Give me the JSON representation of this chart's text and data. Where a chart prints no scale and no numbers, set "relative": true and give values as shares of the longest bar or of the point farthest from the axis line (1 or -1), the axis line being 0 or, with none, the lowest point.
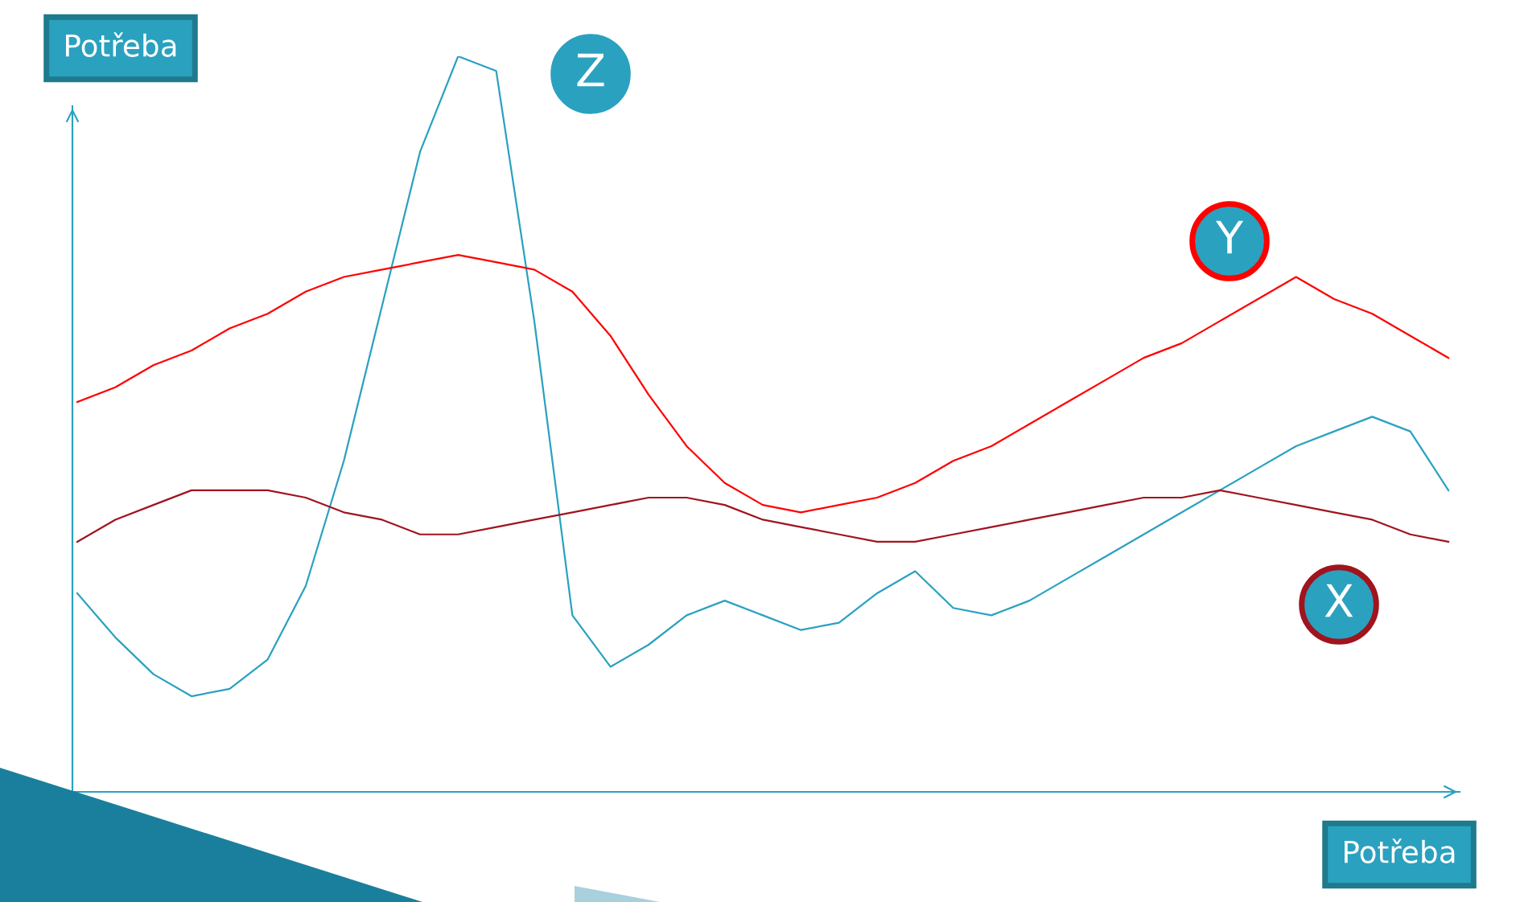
{
  "chart_data": {
    "type": "line",
    "relative": true,
    "xlabel": "Potřeba",
    "ylabel": "Potřeba",
    "grid": false,
    "legend": false,
    "categories": [
      null,
      null,
      null,
      null,
      null,
      null,
      null,
      null,
      null,
      null,
      null,
      null,
      null,
      null,
      null,
      null,
      null,
      null,
      null,
      null,
      null,
      null,
      null,
      null,
      null,
      null,
      null,
      null,
      null,
      null,
      null,
      null,
      null,
      null,
      null,
      null,
      null
    ],
    "series": [
      {
        "name": "Z",
        "color": "#2aa1c0",
        "values": [
          0.27,
          0.21,
          0.16,
          0.13,
          0.14,
          0.18,
          0.28,
          0.45,
          0.66,
          0.87,
          1.0,
          0.98,
          0.64,
          0.24,
          0.17,
          0.2,
          0.24,
          0.26,
          0.24,
          0.22,
          0.23,
          0.27,
          0.3,
          0.25,
          0.24,
          0.26,
          0.29,
          0.32,
          0.35,
          0.38,
          0.41,
          0.44,
          0.47,
          0.49,
          0.51,
          0.49,
          0.41
        ]
      },
      {
        "name": "Y",
        "color": "#ff0000",
        "values": [
          0.53,
          0.55,
          0.58,
          0.6,
          0.63,
          0.65,
          0.68,
          0.7,
          0.71,
          0.72,
          0.73,
          0.72,
          0.71,
          0.68,
          0.62,
          0.54,
          0.47,
          0.42,
          0.39,
          0.38,
          0.39,
          0.4,
          0.42,
          0.45,
          0.47,
          0.5,
          0.53,
          0.56,
          0.59,
          0.61,
          0.64,
          0.67,
          0.7,
          0.67,
          0.65,
          0.62,
          0.59
        ]
      },
      {
        "name": "X",
        "color": "#a0141e",
        "values": [
          0.34,
          0.37,
          0.39,
          0.41,
          0.41,
          0.41,
          0.4,
          0.38,
          0.37,
          0.35,
          0.35,
          0.36,
          0.37,
          0.38,
          0.39,
          0.4,
          0.4,
          0.39,
          0.37,
          0.36,
          0.35,
          0.34,
          0.34,
          0.35,
          0.36,
          0.37,
          0.38,
          0.39,
          0.4,
          0.4,
          0.41,
          0.4,
          0.39,
          0.38,
          0.37,
          0.35,
          0.34
        ]
      }
    ]
  }
}
